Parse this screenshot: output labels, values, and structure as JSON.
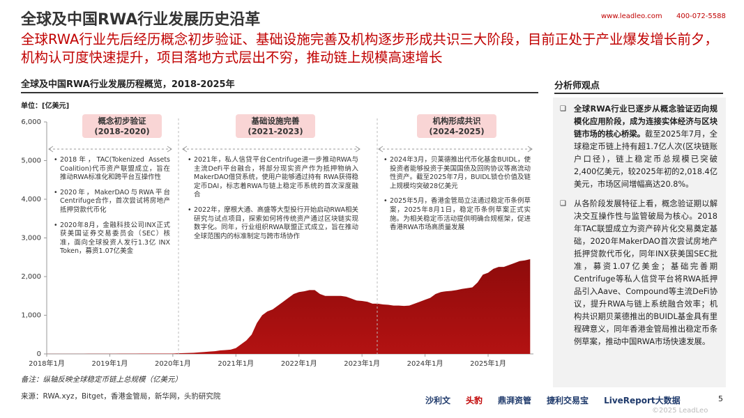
{
  "header": {
    "title": "全球及中国RWA行业发展历史沿革",
    "subtitle": "全球RWA行业先后经历概念初步验证、基础设施完善及机构逐步形成共识三大阶段，目前正处于产业爆发增长前夕，机构认可度快速提升，项目落地方式层出不穷，推动链上规模高速增长",
    "website": "www.leadleo.com",
    "phone": "400-072-5588"
  },
  "chart_data": {
    "type": "area",
    "title": "全球及中国RWA行业发展历程概览，2018-2025年",
    "unit": "单位：[亿美元]",
    "note": "备注：纵轴反映全球稳定币链上总规模（亿美元）",
    "color": "#8e0b0b",
    "categories": [
      "2018年1月",
      null,
      null,
      null,
      null,
      null,
      null,
      null,
      null,
      null,
      null,
      null,
      "2019年1月",
      null,
      null,
      null,
      null,
      null,
      null,
      null,
      null,
      null,
      null,
      null,
      "2020年1月",
      null,
      null,
      null,
      null,
      null,
      null,
      null,
      null,
      null,
      null,
      null,
      "2021年1月",
      null,
      null,
      null,
      null,
      null,
      null,
      null,
      null,
      null,
      null,
      null,
      "2022年1月",
      null,
      null,
      null,
      null,
      null,
      null,
      null,
      null,
      null,
      null,
      null,
      "2023年1月",
      null,
      null,
      null,
      null,
      null,
      null,
      null,
      null,
      null,
      null,
      null,
      "2024年1月",
      null,
      null,
      null,
      null,
      null,
      null,
      null,
      null,
      null,
      null,
      null,
      "2025年1月",
      null,
      null,
      null,
      null,
      null,
      null,
      null,
      null
    ],
    "values": [
      2,
      3,
      3,
      3,
      3,
      3,
      3,
      3,
      4,
      4,
      4,
      4,
      5,
      5,
      6,
      6,
      7,
      7,
      8,
      8,
      8,
      9,
      9,
      10,
      10,
      15,
      20,
      25,
      30,
      40,
      50,
      60,
      70,
      90,
      100,
      110,
      150,
      250,
      350,
      500,
      800,
      1000,
      1100,
      1150,
      1250,
      1350,
      1450,
      1550,
      1600,
      1620,
      1650,
      1650,
      1550,
      1500,
      1500,
      1500,
      1500,
      1480,
      1430,
      1380,
      1370,
      1350,
      1300,
      1300,
      1280,
      1270,
      1250,
      1250,
      1240,
      1250,
      1300,
      1350,
      1400,
      1450,
      1550,
      1600,
      1620,
      1630,
      1650,
      1680,
      1700,
      1720,
      1850,
      2050,
      2100,
      2200,
      2250,
      2250,
      2300,
      2350,
      2400,
      2420,
      2450
    ],
    "ylim": [
      0,
      6000
    ],
    "yticks": [
      0,
      {
        "value": 1000,
        "label": "1,000"
      },
      {
        "value": 2000,
        "label": "2,000"
      },
      {
        "value": 3000,
        "label": "3,000"
      },
      {
        "value": 4000,
        "label": "4,000"
      },
      {
        "value": 5000,
        "label": "5,000"
      },
      {
        "value": 6000,
        "label": "6,000"
      }
    ],
    "phases": [
      {
        "name": "概念初步验证",
        "period": "(2018-2020)",
        "items": [
          "2018年，TAC(Tokenized Assets Coalition)代币资产联盟成立，旨在推动RWA标准化和跨平台互操作性",
          "2020年，MakerDAO与RWA平台Centrifuge合作，首次尝试将房地产抵押贷款代币化",
          "2020年8月，金融科技公司INX正式获美国证券交易委员会（SEC）核准，面向全球投资人发行1.3亿 INX Token，募资1.07亿美金"
        ]
      },
      {
        "name": "基础设施完善",
        "period": "(2021-2023)",
        "items": [
          "2021年，私人信贷平台Centrifuge进一步推动RWA与主流DeFi平台融合，将部分现实资产作为抵押物纳入MakerDAO借贷系统，使用户能够通过持有 RWA获得稳定币DAI，标志着RWA与链上稳定币系统的首次深度融合",
          "2022年，摩根大通、高盛等大型投行开始启动RWA相关研究与试点项目，探索如何将传统资产通过区块链实现数字化。同年，行业组织RWA联盟正式成立，旨在推动全球范围内的标准制定与跨市场协作"
        ]
      },
      {
        "name": "机构形成共识",
        "period": "(2024-2025)",
        "items": [
          "2024年3月，贝莱德推出代币化基金BUIDL，使投资者能够投资于美国国债及回购协议等高流动性资产。截至2025年7月，BUIDL锁仓价值及链上规模均突破28亿美元",
          "2025年5月，香港金管局立法通过稳定币条例草案，2025年8月1日，稳定币条例草案正式实施。为相关稳定币活动提供明确合规框架，促进香港RWA市场高质量发展"
        ]
      }
    ]
  },
  "source": "来源：RWA.xyz，Bitget，香港金管局，新华网，头豹研究院",
  "analyst": {
    "title": "分析师观点",
    "points": [
      {
        "bold": "全球RWA行业已逐步从概念验证迈向规模化应用阶段，成为连接实体经济与区块链市场的核心桥梁。",
        "text": "截至2025年7月，全球稳定币链上持有超1.7亿人次(区块链账户口径)，链上稳定币总规模已突破2,400亿美元，较2025年初的2,018.4亿美元，市场区间增幅高达20.8%。"
      },
      {
        "bold": "",
        "text": "从各阶段发展特征上看，概念验证期以解决交互操作性与监管破局为核心。2018年TAC联盟成立为资产碎片化交易奠定基础，2020年MakerDAO首次尝试房地产抵押贷款代币化，同年INX获美国SEC批准，募资1.07亿美金；基础完善期Centrifuge等私人信贷平台将RWA抵押品引入Aave、Compound等主流DeFi协议，提升RWA与链上系统融合效率；机构共识期贝莱德推出的BUIDL基金具有里程碑意义，同年香港金管局推出稳定币条例草案，推动中国RWA市场快速发展。"
      }
    ]
  },
  "footer": {
    "logos": [
      "沙利文",
      "头豹",
      "鼎湃资管",
      "捷利交易宝",
      "LiveReport大数据"
    ],
    "page": "5",
    "copyright": "©2025 LeadLeo"
  }
}
